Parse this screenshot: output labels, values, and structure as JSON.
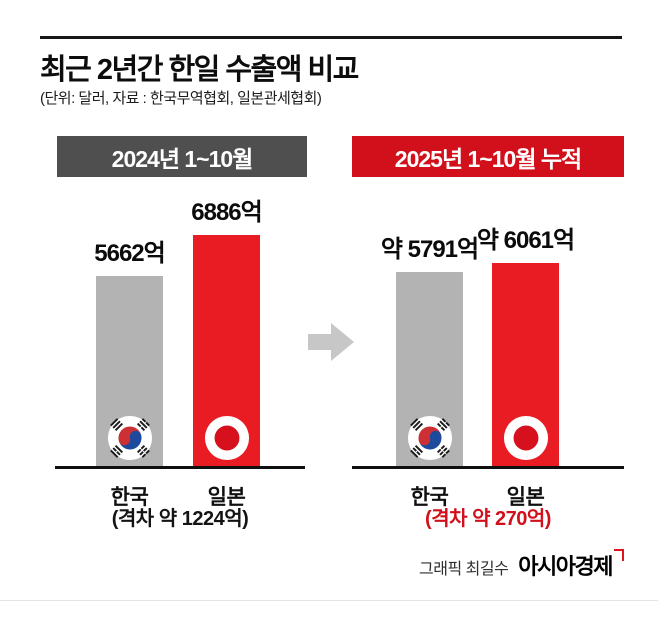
{
  "page": {
    "title": "최근 2년간 한일 수출액 비교",
    "subtitle": "(단위: 달러, 자료 : 한국무역협회, 일본관세협회)",
    "footer_credit": "그래픽 최길수",
    "footer_brand": "아시아경제"
  },
  "chart_data": {
    "type": "bar",
    "title": "최근 2년간 한일 수출액 비교",
    "subtitle": "(단위: 달러, 자료 : 한국무역협회, 일본관세협회)",
    "unit": "억 달러",
    "ylim": [
      0,
      6886
    ],
    "grid": false,
    "legend": "none",
    "panels": [
      {
        "period_label": "2024년 1~10월",
        "categories": [
          "한국",
          "일본"
        ],
        "values": [
          5662,
          6886
        ],
        "value_labels": [
          "5662억",
          "6886억"
        ],
        "gap_label": "(격차 약 1224억)",
        "bar_colors": [
          "#b3b3b3",
          "#ea1c23"
        ]
      },
      {
        "period_label": "2025년 1~10월 누적",
        "categories": [
          "한국",
          "일본"
        ],
        "values": [
          5791,
          6061
        ],
        "value_labels": [
          "약 5791억",
          "약 6061억"
        ],
        "gap_label": "(격차 약 270억)",
        "bar_colors": [
          "#b3b3b3",
          "#ea1c23"
        ]
      }
    ],
    "colors": {
      "korea_bar": "#b3b3b3",
      "japan_bar": "#ea1c23",
      "badge_2024_bg": "#4f4f4f",
      "badge_2025_bg": "#d1101b",
      "gap_2025_text": "#d1101b",
      "arrow": "#c7c7c7"
    }
  }
}
